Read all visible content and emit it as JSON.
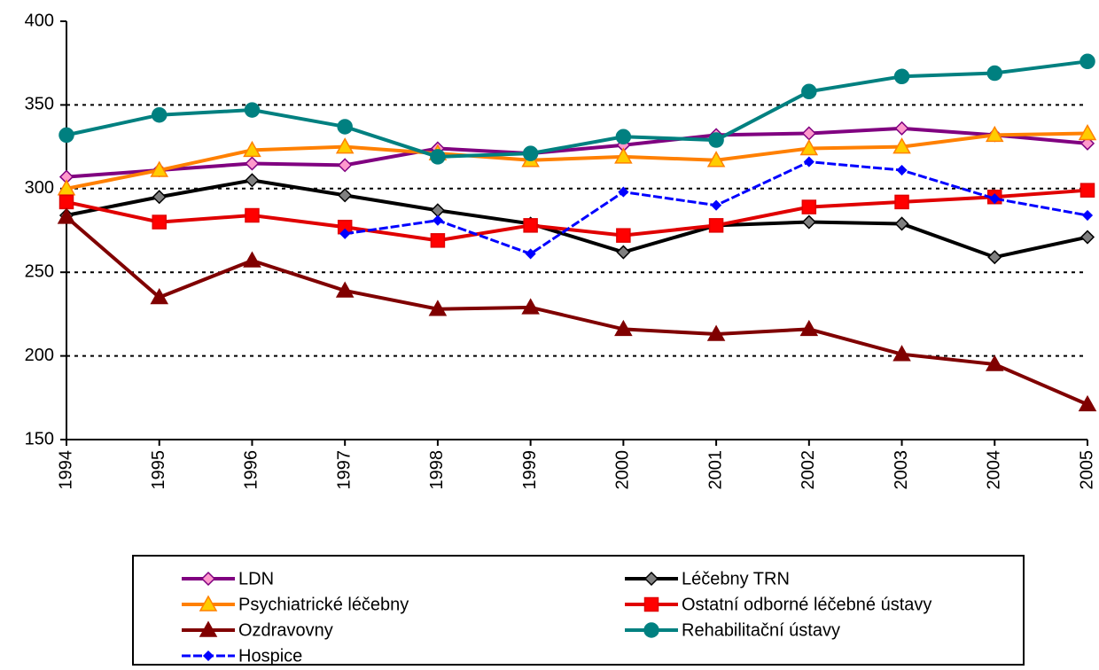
{
  "chart_data": {
    "type": "line",
    "x": [
      1994,
      1995,
      1996,
      1997,
      1998,
      1999,
      2000,
      2001,
      2002,
      2003,
      2004,
      2005
    ],
    "xlim": [
      1994,
      2005
    ],
    "xticks": [
      1994,
      1995,
      1996,
      1997,
      1998,
      1999,
      2000,
      2001,
      2002,
      2003,
      2004,
      2005
    ],
    "ylim": [
      150,
      400
    ],
    "yticks": [
      150,
      200,
      250,
      300,
      350,
      400
    ],
    "grid": true,
    "legend": "bottom",
    "series": [
      {
        "name": "LDN",
        "color": "#800080",
        "marker": "diamond",
        "marker_fill": "#ff99cc",
        "values": [
          307,
          311,
          315,
          314,
          324,
          321,
          326,
          332,
          333,
          336,
          332,
          327
        ]
      },
      {
        "name": "Léčebny TRN",
        "color": "#000000",
        "marker": "diamond",
        "marker_fill": "#808080",
        "values": [
          284,
          295,
          305,
          296,
          287,
          279,
          262,
          278,
          280,
          279,
          259,
          271
        ]
      },
      {
        "name": "Psychiatrické léčebny",
        "color": "#ff8000",
        "marker": "triangle",
        "marker_fill": "#ffcc00",
        "values": [
          300,
          311,
          323,
          325,
          321,
          317,
          319,
          317,
          324,
          325,
          332,
          333
        ]
      },
      {
        "name": "Ostatní odborné léčebné ústavy",
        "color": "#e00000",
        "marker": "square",
        "marker_fill": "#ff0000",
        "values": [
          292,
          280,
          284,
          277,
          269,
          278,
          272,
          278,
          289,
          292,
          295,
          299
        ]
      },
      {
        "name": "Ozdravovny",
        "color": "#800000",
        "marker": "triangle",
        "marker_fill": "#800000",
        "values": [
          283,
          235,
          257,
          239,
          228,
          229,
          216,
          213,
          216,
          201,
          195,
          171
        ]
      },
      {
        "name": "Rehabilitační ústavy",
        "color": "#008080",
        "marker": "circle",
        "marker_fill": "#008080",
        "values": [
          332,
          344,
          347,
          337,
          319,
          321,
          331,
          329,
          358,
          367,
          369,
          376
        ]
      },
      {
        "name": "Hospice",
        "color": "#0000ff",
        "marker": "small-diamond",
        "marker_fill": "#0000ff",
        "values": [
          null,
          null,
          null,
          273,
          281,
          261,
          298,
          290,
          316,
          311,
          294,
          284
        ]
      }
    ]
  }
}
